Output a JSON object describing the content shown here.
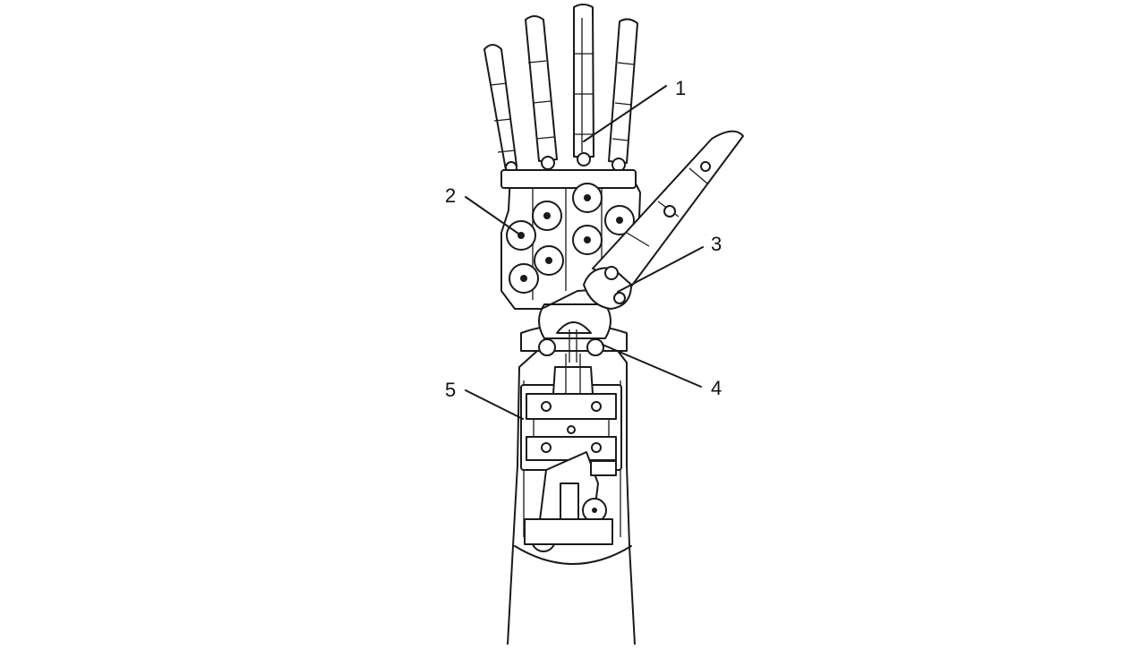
{
  "figure": {
    "subject": "robotic-hand-and-forearm",
    "callouts": [
      {
        "id": "c1",
        "label": "1"
      },
      {
        "id": "c2",
        "label": "2"
      },
      {
        "id": "c3",
        "label": "3"
      },
      {
        "id": "c4",
        "label": "4"
      },
      {
        "id": "c5",
        "label": "5"
      }
    ],
    "colors": {
      "line": "#1a1a1a",
      "background": "#ffffff"
    }
  }
}
